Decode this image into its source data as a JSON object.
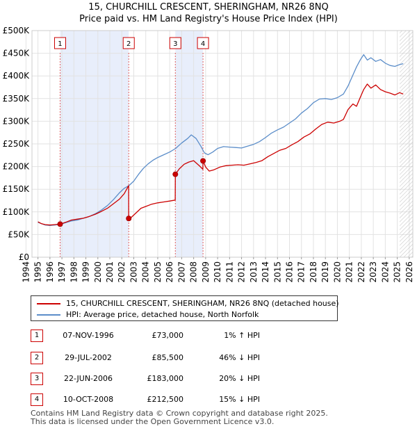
{
  "chart_data": {
    "type": "line",
    "title": "15, CHURCHILL CRESCENT, SHERINGHAM, NR26 8NQ",
    "subtitle": "Price paid vs. HM Land Registry's House Price Index (HPI)",
    "xlabel": "",
    "ylabel": "",
    "xlim": [
      1994,
      2026
    ],
    "ylim": [
      0,
      500000
    ],
    "x_ticks": [
      "1994",
      "1995",
      "1996",
      "1997",
      "1998",
      "1999",
      "2000",
      "2001",
      "2002",
      "2003",
      "2004",
      "2005",
      "2006",
      "2007",
      "2008",
      "2009",
      "2010",
      "2011",
      "2012",
      "2013",
      "2014",
      "2015",
      "2016",
      "2017",
      "2018",
      "2019",
      "2020",
      "2021",
      "2022",
      "2023",
      "2024",
      "2025",
      "2026"
    ],
    "y_ticks": [
      {
        "value": 0,
        "label": "£0"
      },
      {
        "value": 50000,
        "label": "£50K"
      },
      {
        "value": 100000,
        "label": "£100K"
      },
      {
        "value": 150000,
        "label": "£150K"
      },
      {
        "value": 200000,
        "label": "£200K"
      },
      {
        "value": 250000,
        "label": "£250K"
      },
      {
        "value": 300000,
        "label": "£300K"
      },
      {
        "value": 350000,
        "label": "£350K"
      },
      {
        "value": 400000,
        "label": "£400K"
      },
      {
        "value": 450000,
        "label": "£450K"
      },
      {
        "value": 500000,
        "label": "£500K"
      }
    ],
    "shaded_ranges": [
      [
        1996.85,
        2002.58
      ],
      [
        2006.47,
        2008.78
      ]
    ],
    "future_hatch_from": 2025.2,
    "series": [
      {
        "name": "15, CHURCHILL CRESCENT, SHERINGHAM, NR26 8NQ (detached house)",
        "color": "#cc0000",
        "x": [
          1995.0,
          1995.3,
          1995.6,
          1996.0,
          1996.4,
          1996.85,
          1996.86,
          1997.3,
          1997.8,
          1998.3,
          1998.8,
          1999.3,
          1999.8,
          2000.3,
          2000.8,
          2001.3,
          2001.8,
          2002.2,
          2002.57,
          2002.58,
          2002.8,
          2003.2,
          2003.6,
          2004.0,
          2004.5,
          2005.0,
          2005.5,
          2006.0,
          2006.46,
          2006.47,
          2006.8,
          2007.2,
          2007.6,
          2008.0,
          2008.5,
          2008.77,
          2008.78,
          2009.0,
          2009.3,
          2009.7,
          2010.2,
          2010.7,
          2011.2,
          2011.7,
          2012.2,
          2012.7,
          2013.2,
          2013.7,
          2014.2,
          2014.7,
          2015.2,
          2015.7,
          2016.2,
          2016.7,
          2017.2,
          2017.7,
          2018.2,
          2018.7,
          2019.2,
          2019.7,
          2020.2,
          2020.5,
          2020.9,
          2021.3,
          2021.6,
          2021.9,
          2022.2,
          2022.5,
          2022.8,
          2023.2,
          2023.6,
          2024.0,
          2024.4,
          2024.8,
          2025.2,
          2025.5
        ],
        "values": [
          78000,
          74000,
          72000,
          71000,
          72000,
          73000,
          73000,
          77000,
          82000,
          84000,
          86000,
          90000,
          95000,
          101000,
          108000,
          118000,
          128000,
          140000,
          158000,
          85500,
          88000,
          98000,
          108000,
          112000,
          117000,
          120000,
          122000,
          124000,
          126000,
          183000,
          195000,
          205000,
          210000,
          213000,
          201000,
          194000,
          212500,
          199000,
          190000,
          193000,
          199000,
          202000,
          203000,
          204000,
          203000,
          206000,
          209000,
          213000,
          222000,
          229000,
          236000,
          240000,
          248000,
          255000,
          265000,
          272000,
          283000,
          293000,
          298000,
          296000,
          300000,
          304000,
          326000,
          338000,
          333000,
          352000,
          370000,
          382000,
          373000,
          380000,
          370000,
          365000,
          362000,
          358000,
          363000,
          360000
        ]
      },
      {
        "name": "HPI: Average price, detached house, North Norfolk",
        "color": "#5b8dc9",
        "x": [
          1995.0,
          1995.3,
          1995.6,
          1996.0,
          1996.4,
          1996.85,
          1997.3,
          1997.8,
          1998.3,
          1998.8,
          1999.3,
          1999.8,
          2000.3,
          2000.8,
          2001.3,
          2001.8,
          2002.2,
          2002.6,
          2003.0,
          2003.4,
          2003.8,
          2004.2,
          2004.6,
          2005.0,
          2005.5,
          2006.0,
          2006.5,
          2007.0,
          2007.5,
          2007.8,
          2008.2,
          2008.6,
          2008.9,
          2009.2,
          2009.6,
          2010.0,
          2010.5,
          2011.0,
          2011.5,
          2012.0,
          2012.5,
          2013.0,
          2013.5,
          2014.0,
          2014.5,
          2015.0,
          2015.5,
          2016.0,
          2016.5,
          2017.0,
          2017.5,
          2018.0,
          2018.5,
          2019.0,
          2019.5,
          2020.0,
          2020.5,
          2020.9,
          2021.3,
          2021.6,
          2021.9,
          2022.2,
          2022.5,
          2022.8,
          2023.2,
          2023.6,
          2024.0,
          2024.4,
          2024.8,
          2025.2,
          2025.5
        ],
        "values": [
          77000,
          74000,
          71000,
          70000,
          71000,
          72500,
          76000,
          80000,
          82000,
          86000,
          90000,
          96000,
          104000,
          114000,
          127000,
          142000,
          152000,
          158000,
          168000,
          183000,
          196000,
          206000,
          214000,
          220000,
          226000,
          232000,
          240000,
          252000,
          262000,
          270000,
          262000,
          245000,
          230000,
          226000,
          232000,
          240000,
          244000,
          243000,
          242000,
          241000,
          245000,
          249000,
          255000,
          264000,
          274000,
          281000,
          287000,
          296000,
          305000,
          318000,
          328000,
          341000,
          349000,
          350000,
          348000,
          352000,
          360000,
          378000,
          402000,
          420000,
          435000,
          447000,
          435000,
          440000,
          432000,
          436000,
          428000,
          423000,
          421000,
          425000,
          427000
        ]
      }
    ],
    "markers": [
      {
        "label": "1",
        "x": 1996.85,
        "y": 73000
      },
      {
        "label": "2",
        "x": 2002.58,
        "y": 85500
      },
      {
        "label": "3",
        "x": 2006.47,
        "y": 183000
      },
      {
        "label": "4",
        "x": 2008.78,
        "y": 212500
      }
    ]
  },
  "legend": {
    "red_label": "15, CHURCHILL CRESCENT, SHERINGHAM, NR26 8NQ (detached house)",
    "blue_label": "HPI: Average price, detached house, North Norfolk",
    "red_color": "#cc0000",
    "blue_color": "#5b8dc9"
  },
  "sales": [
    {
      "num": "1",
      "date": "07-NOV-1996",
      "price": "£73,000",
      "hpi": "1% ↑ HPI"
    },
    {
      "num": "2",
      "date": "29-JUL-2002",
      "price": "£85,500",
      "hpi": "46% ↓ HPI"
    },
    {
      "num": "3",
      "date": "22-JUN-2006",
      "price": "£183,000",
      "hpi": "20% ↓ HPI"
    },
    {
      "num": "4",
      "date": "10-OCT-2008",
      "price": "£212,500",
      "hpi": "15% ↓ HPI"
    }
  ],
  "footer": {
    "line1": "Contains HM Land Registry data © Crown copyright and database right 2025.",
    "line2": "This data is licensed under the Open Government Licence v3.0."
  }
}
